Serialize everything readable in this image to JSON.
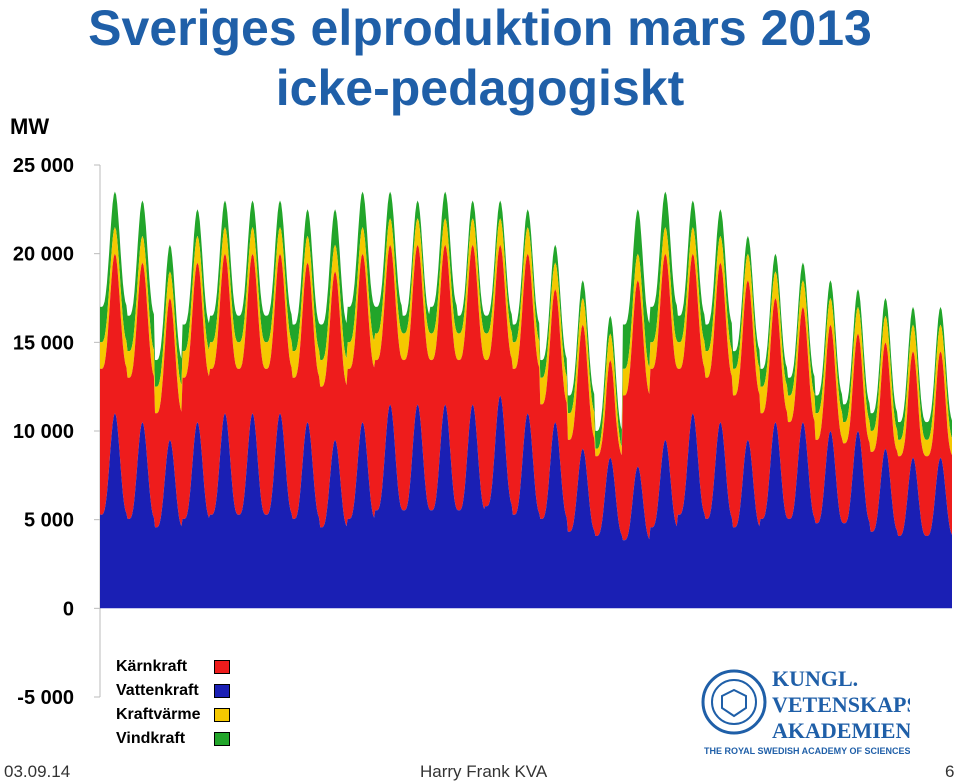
{
  "title_line1": "Sveriges elproduktion mars 2013",
  "title_line2": "icke-pedagogiskt",
  "chart_data": {
    "type": "area",
    "stacked": true,
    "ylabel": "MW",
    "ylim": [
      -5000,
      25000
    ],
    "yticks": [
      25000,
      20000,
      15000,
      10000,
      5000,
      0,
      -5000
    ],
    "ytick_labels": [
      "25 000",
      "20 000",
      "15 000",
      "10 000",
      "5 000",
      "0",
      "-5 000"
    ],
    "legend": [
      {
        "name": "Kärnkraft",
        "color": "#ee1c1c"
      },
      {
        "name": "Vattenkraft",
        "color": "#1a1fb4"
      },
      {
        "name": "Kraftvärme",
        "color": "#f5c800"
      },
      {
        "name": "Vindkraft",
        "color": "#22a52a"
      }
    ],
    "legend_placement": "bottom-left",
    "days": 31,
    "series_daily_peak": {
      "Vattenkraft": [
        11000,
        10500,
        9500,
        10500,
        11000,
        11000,
        11000,
        10500,
        9500,
        10500,
        11500,
        11500,
        11500,
        11500,
        12000,
        11000,
        10500,
        9000,
        8500,
        8000,
        9500,
        11000,
        10500,
        9500,
        10500,
        10500,
        10000,
        10000,
        9000,
        8500,
        8500
      ],
      "Kärnkraft_top": [
        20000,
        19500,
        17500,
        19500,
        20000,
        20000,
        20000,
        19500,
        19000,
        20000,
        20500,
        20500,
        20500,
        20500,
        20500,
        20000,
        18000,
        16000,
        14000,
        18500,
        20000,
        20000,
        19500,
        18500,
        17500,
        17000,
        16000,
        15500,
        15000,
        14500,
        14500
      ],
      "Kraftvärme_top": [
        21500,
        21000,
        19000,
        21000,
        21500,
        21500,
        21500,
        21000,
        20500,
        21500,
        22000,
        22000,
        22000,
        22000,
        22000,
        21500,
        19500,
        17500,
        15500,
        20000,
        21500,
        21500,
        21000,
        20000,
        19000,
        18500,
        17500,
        17000,
        16500,
        16000,
        16000
      ],
      "Vindkraft_top": [
        23500,
        23000,
        20500,
        22500,
        23000,
        23000,
        23000,
        22500,
        22500,
        23500,
        23500,
        23000,
        23500,
        23000,
        23000,
        22500,
        20500,
        18500,
        16500,
        22500,
        23500,
        23000,
        22500,
        21000,
        20000,
        19500,
        18500,
        18000,
        17500,
        17000,
        17000
      ]
    }
  },
  "footer": {
    "date": "03.09.14",
    "author": "Harry Frank KVA",
    "page": "6"
  },
  "logo": {
    "line1": "KUNGL.",
    "line2": "VETENSKAPS-",
    "line3": "AKADEMIEN",
    "line4": "THE ROYAL SWEDISH ACADEMY OF SCIENCES",
    "color": "#1f5fa8"
  }
}
